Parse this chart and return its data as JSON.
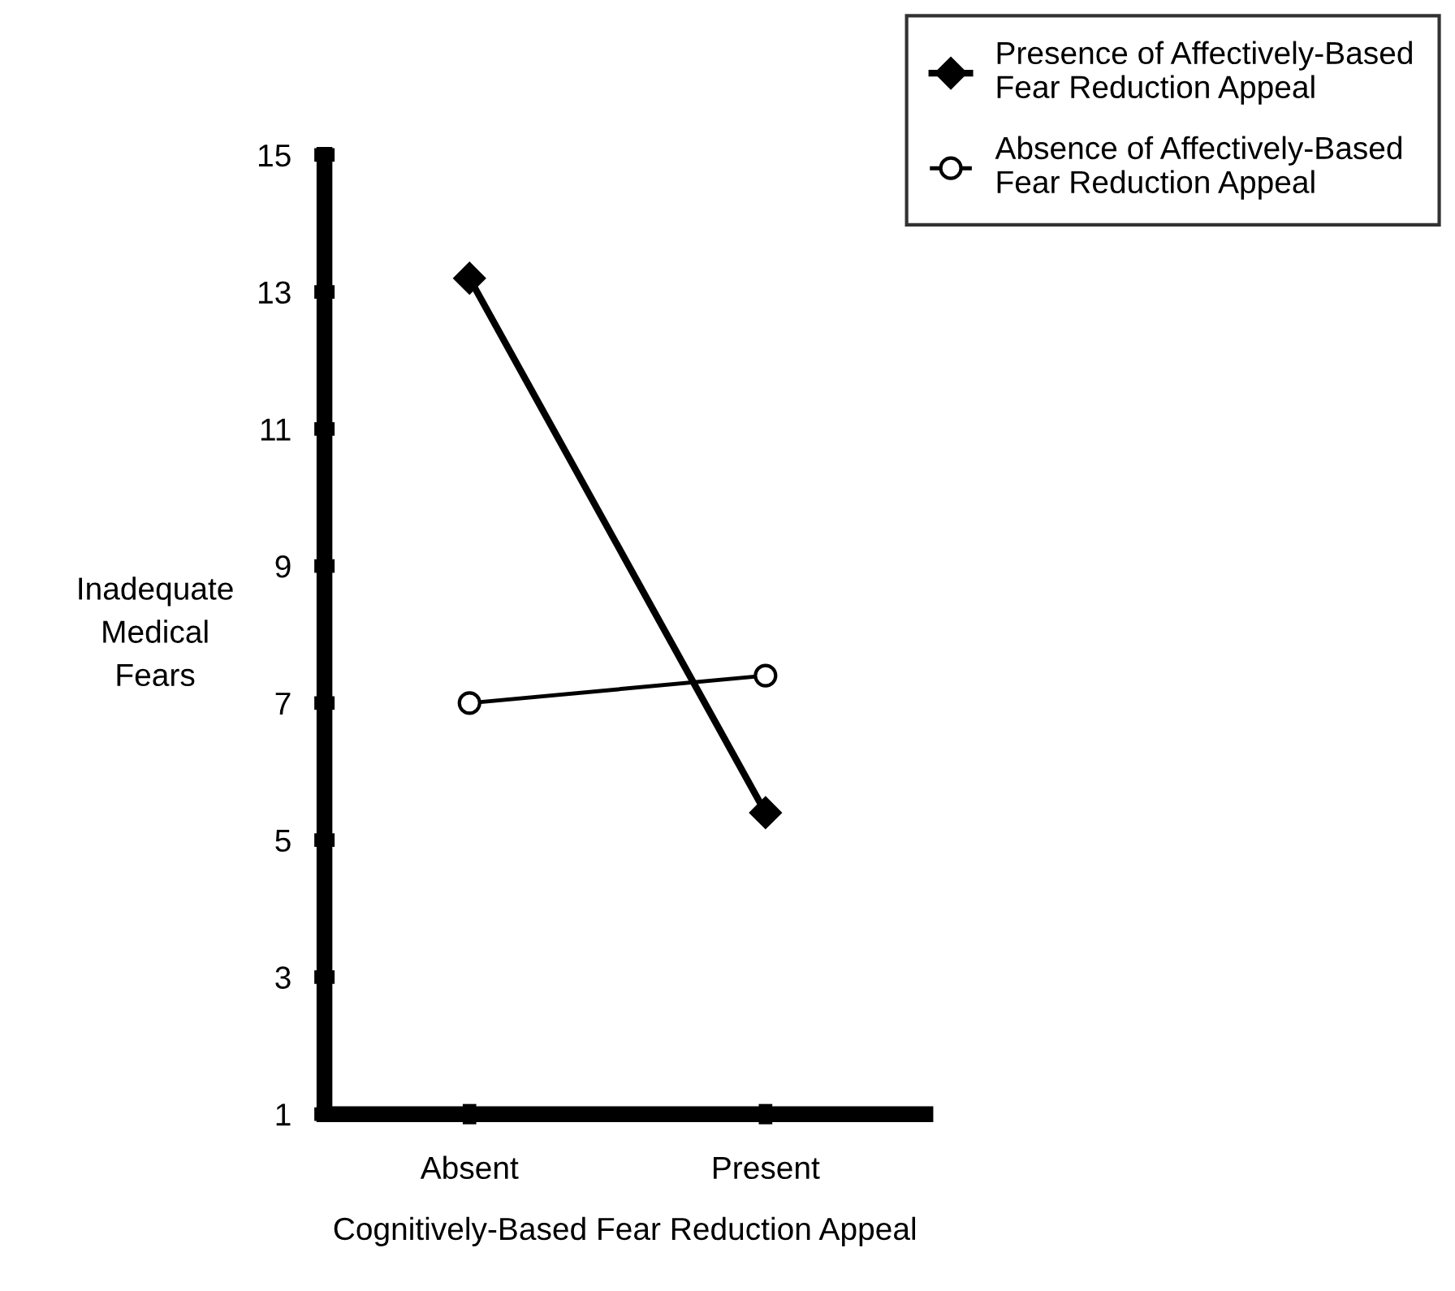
{
  "chart_data": {
    "type": "line",
    "xlabel": "Cognitively-Based Fear Reduction Appeal",
    "ylabel": "Inadequate\nMedical\nFears",
    "categories": [
      "Absent",
      "Present"
    ],
    "series": [
      {
        "name": "Presence of Affectively-Based\nFear Reduction Appeal",
        "color": "#000000",
        "marker": "diamond",
        "values": [
          13.2,
          5.4
        ]
      },
      {
        "name": "Absence of Affectively-Based\nFear Reduction Appeal",
        "color": "#000000",
        "marker": "circle",
        "values": [
          7.0,
          7.4
        ]
      }
    ],
    "ylim": [
      1,
      15
    ],
    "yticks": [
      1,
      3,
      5,
      7,
      9,
      11,
      13,
      15
    ],
    "grid": false,
    "legend": "top right",
    "line_style": "solid"
  }
}
